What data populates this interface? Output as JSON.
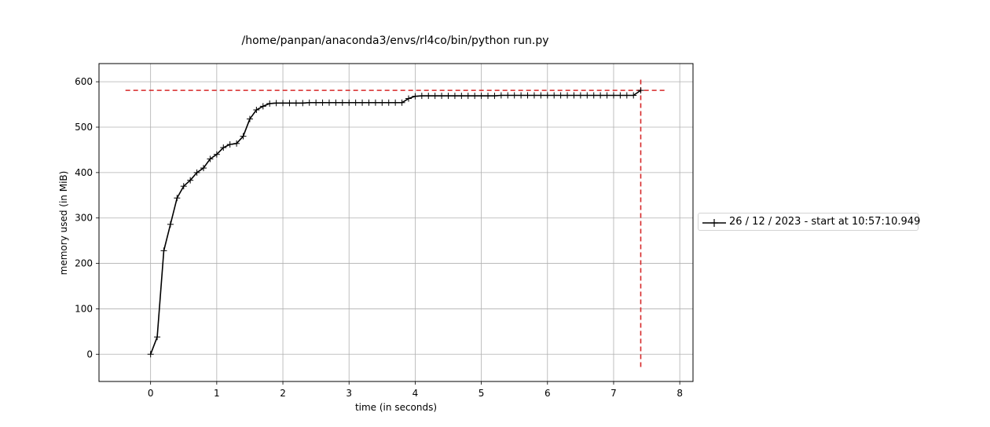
{
  "chart_data": {
    "type": "line",
    "title": "/home/panpan/anaconda3/envs/rl4co/bin/python run.py",
    "xlabel": "time (in seconds)",
    "ylabel": "memory used (in MiB)",
    "xlim": [
      -0.78,
      8.2
    ],
    "ylim": [
      -60,
      640
    ],
    "xticks": [
      0,
      1,
      2,
      3,
      4,
      5,
      6,
      7,
      8
    ],
    "yticks": [
      0,
      100,
      200,
      300,
      400,
      500,
      600
    ],
    "grid": true,
    "legend_position": "outside-right",
    "series": [
      {
        "name": "26 / 12 / 2023 - start at 10:57:10.949",
        "color": "#000000",
        "marker": "+",
        "x": [
          0,
          0.1,
          0.2,
          0.3,
          0.4,
          0.5,
          0.6,
          0.7,
          0.8,
          0.9,
          1.0,
          1.1,
          1.2,
          1.3,
          1.4,
          1.5,
          1.6,
          1.7,
          1.8,
          1.9,
          2.0,
          2.1,
          2.2,
          2.3,
          2.4,
          2.5,
          2.6,
          2.7,
          2.8,
          2.9,
          3.0,
          3.1,
          3.2,
          3.3,
          3.4,
          3.5,
          3.6,
          3.7,
          3.8,
          3.9,
          4.0,
          4.1,
          4.2,
          4.3,
          4.4,
          4.5,
          4.6,
          4.7,
          4.8,
          4.9,
          5.0,
          5.1,
          5.2,
          5.3,
          5.4,
          5.5,
          5.6,
          5.7,
          5.8,
          5.9,
          6.0,
          6.1,
          6.2,
          6.3,
          6.4,
          6.5,
          6.6,
          6.7,
          6.8,
          6.9,
          7.0,
          7.1,
          7.2,
          7.3,
          7.41
        ],
        "y": [
          0,
          38,
          228,
          286,
          344,
          370,
          383,
          400,
          410,
          430,
          440,
          455,
          462,
          464,
          480,
          518,
          538,
          546,
          552,
          553,
          553,
          553,
          553,
          553,
          554,
          554,
          554,
          554,
          554,
          554,
          554,
          554,
          554,
          554,
          554,
          554,
          554,
          554,
          554,
          563,
          568,
          569,
          569,
          569,
          569,
          569,
          569,
          569,
          569,
          569,
          569,
          569,
          569,
          570,
          570,
          570,
          570,
          570,
          570,
          570,
          570,
          570,
          570,
          570,
          570,
          570,
          570,
          570,
          570,
          570,
          570,
          570,
          570,
          570,
          581
        ]
      }
    ],
    "max_marker": {
      "color": "#d62728",
      "x": 7.41,
      "y": 581,
      "hline_x_range": [
        -0.38,
        7.8
      ],
      "vline_y_range": [
        -28,
        610
      ]
    }
  }
}
